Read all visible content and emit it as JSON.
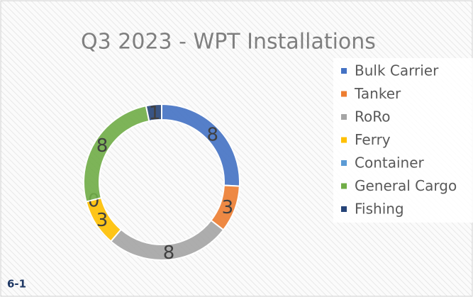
{
  "figure_label": "6-1",
  "chart_data": {
    "type": "donut",
    "title": "Q3 2023 - WPT Installations",
    "categories": [
      "Bulk Carrier",
      "Tanker",
      "RoRo",
      "Ferry",
      "Container",
      "General Cargo",
      "Fishing"
    ],
    "values": [
      8,
      3,
      8,
      3,
      0,
      8,
      1
    ],
    "colors": [
      "#4472c4",
      "#ed7d31",
      "#a5a5a5",
      "#ffc000",
      "#5b9bd5",
      "#70ad47",
      "#264478"
    ],
    "legend": "right"
  }
}
